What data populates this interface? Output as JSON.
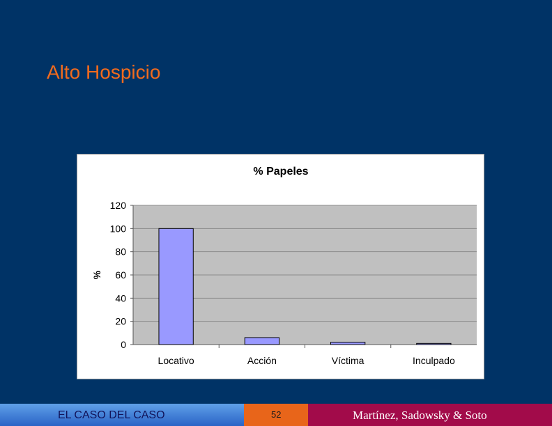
{
  "slide": {
    "title": "Alto Hospicio"
  },
  "footer": {
    "left": "EL CASO DEL CASO",
    "page": "52",
    "right": "Martínez, Sadowsky & Soto"
  },
  "colors": {
    "background": "#003366",
    "title": "#F26B1D",
    "bar": "#9999FF",
    "plot_area": "#C0C0C0",
    "footer_left": "#3B7DDB",
    "footer_mid": "#E8651A",
    "footer_right": "#A20B4A"
  },
  "chart_data": {
    "type": "bar",
    "title": "% Papeles",
    "xlabel": "",
    "ylabel": "%",
    "categories": [
      "Locativo",
      "Acción",
      "Víctima",
      "Inculpado"
    ],
    "values": [
      100,
      6,
      2,
      1
    ],
    "ylim": [
      0,
      120
    ],
    "yticks": [
      0,
      20,
      40,
      60,
      80,
      100,
      120
    ],
    "grid": true,
    "legend": "none"
  }
}
